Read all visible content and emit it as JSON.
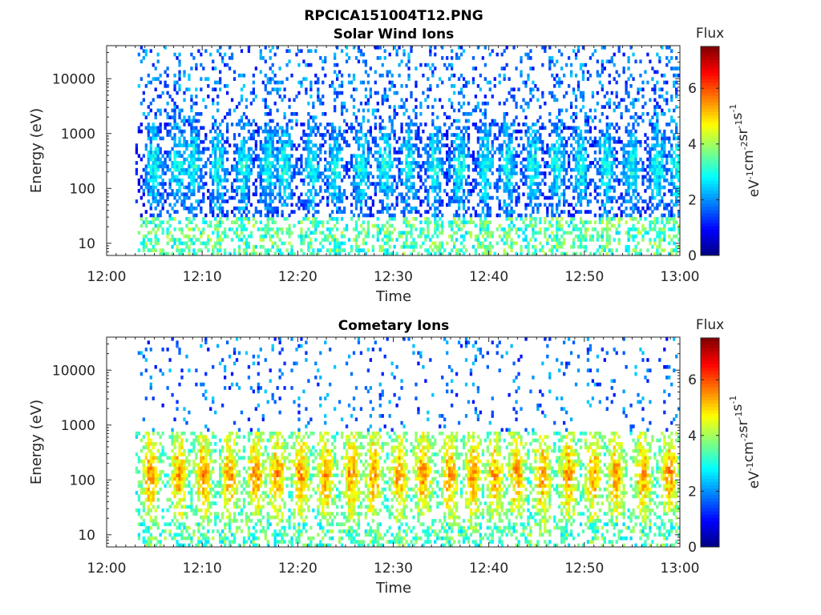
{
  "figure": {
    "filename": "RPCICA151004T12.PNG"
  },
  "colorbar": {
    "label": "Flux",
    "units_base": [
      "eV",
      "cm",
      "sr",
      "s"
    ],
    "units_exp": [
      "-1",
      "-2",
      "-1",
      "-1"
    ],
    "ticks": [
      0,
      2,
      4,
      6
    ],
    "range": [
      0,
      7.5
    ],
    "colormap": "jet"
  },
  "chart_data": [
    {
      "type": "heatmap",
      "title": "Solar Wind Ions",
      "xlabel": "Time",
      "ylabel": "Energy (eV)",
      "x_ticks": [
        "12:00",
        "12:10",
        "12:20",
        "12:30",
        "12:40",
        "12:50",
        "13:00"
      ],
      "xlim": [
        "12:00",
        "13:00"
      ],
      "y_scale": "log",
      "y_ticks": [
        10,
        100,
        1000,
        10000
      ],
      "ylim": [
        6,
        40000
      ],
      "data_start": "12:03",
      "data_end": "13:00",
      "burst_times_min": [
        4.8,
        7.2,
        9.0,
        11.5,
        14.2,
        16.8,
        18.5,
        21.3,
        23.8,
        26.5,
        29.0,
        31.5,
        34.2,
        36.8,
        39.5,
        41.8,
        44.5,
        47.0,
        49.5,
        52.2,
        54.8,
        57.5,
        59.5
      ],
      "core_energy_eV": [
        80,
        800
      ],
      "flux_typical": [
        1,
        3
      ],
      "background_flux": [
        1,
        2.5
      ]
    },
    {
      "type": "heatmap",
      "title": "Cometary Ions",
      "xlabel": "Time",
      "ylabel": "Energy (eV)",
      "x_ticks": [
        "12:00",
        "12:10",
        "12:20",
        "12:30",
        "12:40",
        "12:50",
        "13:00"
      ],
      "xlim": [
        "12:00",
        "13:00"
      ],
      "y_scale": "log",
      "y_ticks": [
        10,
        100,
        1000,
        10000
      ],
      "ylim": [
        6,
        40000
      ],
      "data_start": "12:03",
      "data_end": "13:00",
      "burst_times_min": [
        4.5,
        7.5,
        10.0,
        12.8,
        15.5,
        17.8,
        20.2,
        22.8,
        25.5,
        27.8,
        30.5,
        33.0,
        35.8,
        38.2,
        40.5,
        42.8,
        45.5,
        48.2,
        50.8,
        53.2,
        56.0,
        58.8
      ],
      "core_energy_eV": [
        40,
        400
      ],
      "flux_typical": [
        3,
        5.5
      ],
      "background_flux": [
        1,
        2.5
      ]
    }
  ]
}
